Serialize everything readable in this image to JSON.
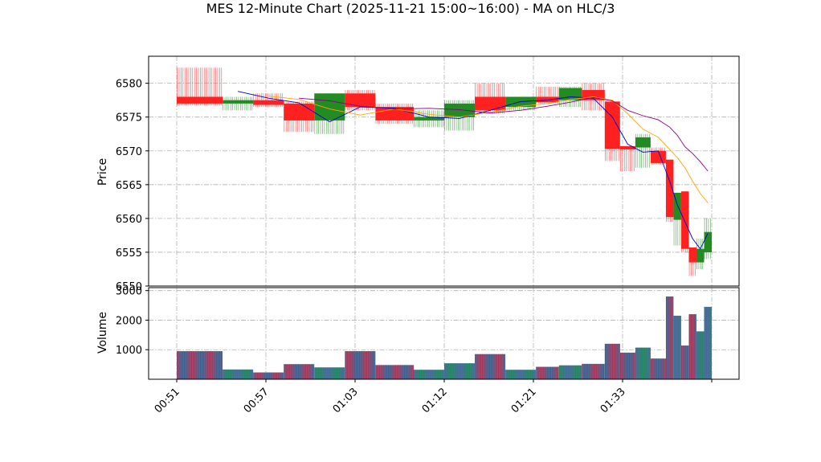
{
  "chart_data": {
    "type": "candlestick",
    "title": "MES 12-Minute Chart (2025-11-21 15:00~16:00) - MA on HLC/3",
    "price_panel": {
      "ylabel": "Price",
      "ylim": [
        6550,
        6584
      ],
      "yticks": [
        6550,
        6555,
        6560,
        6565,
        6570,
        6575,
        6580
      ],
      "grid": true
    },
    "volume_panel": {
      "ylabel": "Volume",
      "ylim": [
        0,
        3100
      ],
      "yticks": [
        1000,
        2000,
        3000
      ],
      "grid": true
    },
    "xticks": [
      "00:51",
      "00:57",
      "01:03",
      "01:12",
      "01:21",
      "01:33",
      ""
    ],
    "up_color": "#228B22",
    "down_color": "#FF2020",
    "candles": [
      {
        "open": 6578,
        "high": 6582.3,
        "low": 6576.7,
        "close": 6577,
        "volume": 950
      },
      {
        "open": 6577,
        "high": 6578,
        "low": 6576,
        "close": 6577.5,
        "volume": 330
      },
      {
        "open": 6577.5,
        "high": 6578.5,
        "low": 6576.5,
        "close": 6576.8,
        "volume": 230
      },
      {
        "open": 6577,
        "high": 6577.3,
        "low": 6572.8,
        "close": 6574.5,
        "volume": 510
      },
      {
        "open": 6574.5,
        "high": 6578.5,
        "low": 6572.5,
        "close": 6578.5,
        "volume": 400
      },
      {
        "open": 6578.5,
        "high": 6579,
        "low": 6576,
        "close": 6576.5,
        "volume": 950
      },
      {
        "open": 6576.5,
        "high": 6577,
        "low": 6574,
        "close": 6574.5,
        "volume": 480
      },
      {
        "open": 6574.5,
        "high": 6576,
        "low": 6573.5,
        "close": 6575,
        "volume": 320
      },
      {
        "open": 6575,
        "high": 6577.5,
        "low": 6573,
        "close": 6577,
        "volume": 540
      },
      {
        "open": 6578,
        "high": 6580,
        "low": 6575.5,
        "close": 6576,
        "volume": 850
      },
      {
        "open": 6576.5,
        "high": 6578,
        "low": 6576,
        "close": 6578,
        "volume": 320
      },
      {
        "open": 6578,
        "high": 6579.5,
        "low": 6577,
        "close": 6577.2,
        "volume": 420
      },
      {
        "open": 6577.5,
        "high": 6579.5,
        "low": 6576.5,
        "close": 6579.3,
        "volume": 470
      },
      {
        "open": 6579,
        "high": 6580,
        "low": 6576,
        "close": 6577.5,
        "volume": 520
      },
      {
        "open": 6577.3,
        "high": 6577.3,
        "low": 6568.5,
        "close": 6570.3,
        "volume": 1200
      },
      {
        "open": 6570.7,
        "high": 6570.7,
        "low": 6567,
        "close": 6570.2,
        "volume": 900
      },
      {
        "open": 6570.5,
        "high": 6572.5,
        "low": 6567.5,
        "close": 6572,
        "volume": 1070
      },
      {
        "open": 6570,
        "high": 6570.5,
        "low": 6568,
        "close": 6568.2,
        "volume": 700
      },
      {
        "open": 6568.7,
        "high": 6568.7,
        "low": 6559.5,
        "close": 6560.2,
        "volume": 2800
      },
      {
        "open": 6559.8,
        "high": 6563.8,
        "low": 6556,
        "close": 6563.8,
        "volume": 2150
      },
      {
        "open": 6564,
        "high": 6564,
        "low": 6555,
        "close": 6555.5,
        "volume": 1140
      },
      {
        "open": 6555.7,
        "high": 6555.7,
        "low": 6551.5,
        "close": 6553.5,
        "volume": 2200
      },
      {
        "open": 6553.5,
        "high": 6557,
        "low": 6552.5,
        "close": 6555.5,
        "volume": 1620
      },
      {
        "open": 6555,
        "high": 6560,
        "low": 6554,
        "close": 6558,
        "volume": 2450
      }
    ],
    "moving_averages": [
      {
        "color": "#0000CC",
        "values": [
          null,
          6578.8,
          6577.8,
          6577.1,
          6574.3,
          6576.5,
          6576.3,
          6575,
          6574.8,
          6576,
          6577.3,
          6577.5,
          6578,
          6577.8,
          6575,
          6571,
          6569.8,
          6570,
          6565.5,
          6562,
          6559.5,
          6557,
          6555.5,
          6557.8
        ]
      },
      {
        "color": "#FFA500",
        "values": [
          null,
          null,
          6578.1,
          6577.6,
          6576.2,
          6575.3,
          6576.2,
          6575.4,
          6575,
          6575.7,
          6576.6,
          6577,
          6577.6,
          6578,
          6577.5,
          6575.5,
          6573.2,
          6572,
          6570.2,
          6569,
          6567.5,
          6565.5,
          6563.7,
          6562.3
        ]
      },
      {
        "color": "#8B008B",
        "values": [
          null,
          null,
          null,
          6577.8,
          6577.4,
          6576.6,
          6576.2,
          6576.3,
          6576.1,
          6575.6,
          6576,
          6576.6,
          6577.2,
          6577.9,
          6577.4,
          6576,
          6575.2,
          6574.6,
          6573.5,
          6572.3,
          6570.6,
          6569.6,
          6568.4,
          6567
        ]
      }
    ]
  }
}
